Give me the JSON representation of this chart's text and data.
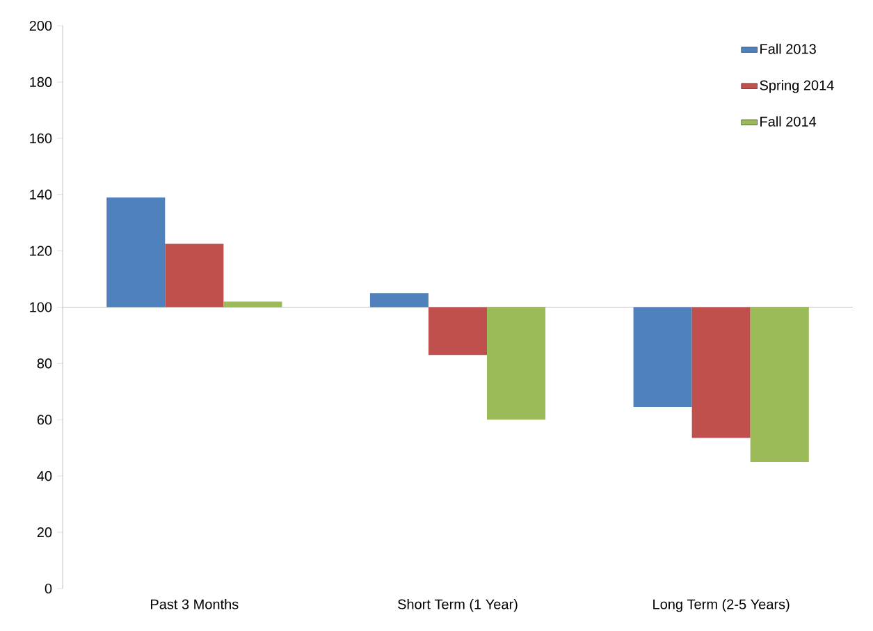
{
  "chart_data": {
    "type": "bar",
    "categories": [
      "Past 3 Months",
      "Short Term (1 Year)",
      "Long Term (2-5 Years)"
    ],
    "series": [
      {
        "name": "Fall 2013",
        "color": "#4f81bd",
        "base": [
          100,
          100,
          100
        ],
        "values": [
          39,
          5,
          -35.5
        ]
      },
      {
        "name": "Spring 2014",
        "color": "#c0504d",
        "base": [
          100,
          100,
          100
        ],
        "values": [
          22.5,
          -17,
          -46.5
        ]
      },
      {
        "name": "Fall 2014",
        "color": "#9bbb59",
        "base": [
          100,
          100,
          100
        ],
        "values": [
          2,
          -40,
          -55
        ]
      }
    ],
    "ylim": [
      0,
      200
    ],
    "yticks": [
      0,
      20,
      40,
      60,
      80,
      100,
      120,
      140,
      160,
      180,
      200
    ],
    "legend": "top right"
  }
}
